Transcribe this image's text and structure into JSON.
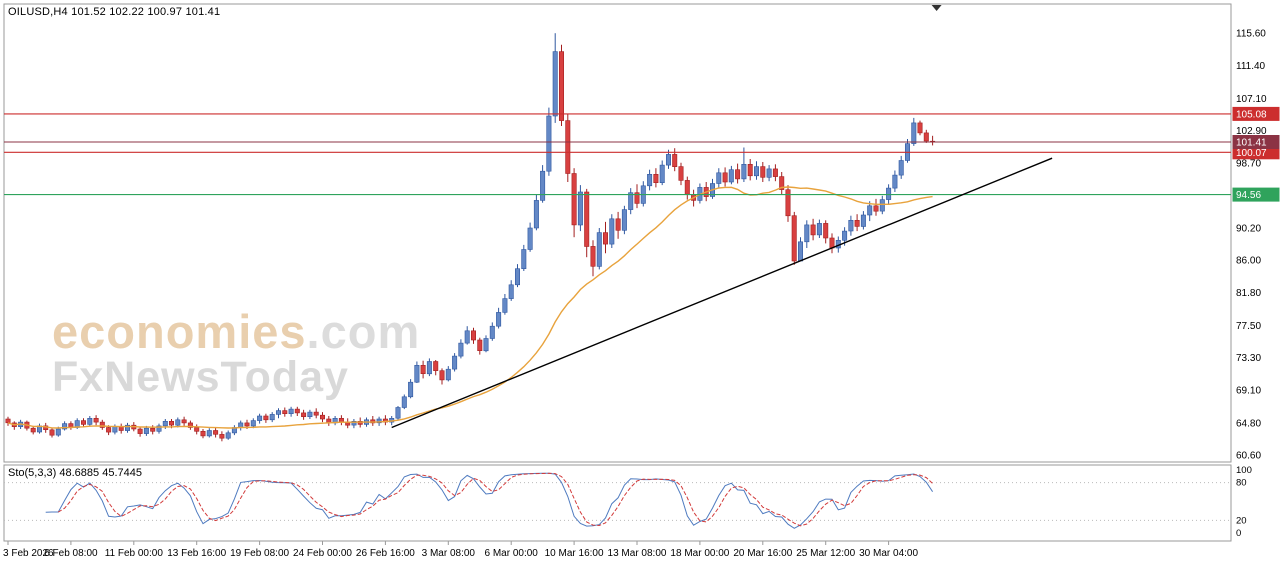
{
  "header": {
    "symbol": "OILUSD,H4",
    "ohlc": "101.52 102.22 100.97 101.41"
  },
  "indicator": {
    "name": "Sto(5,3,3)",
    "k_value": "48.6885",
    "d_value": "45.7445"
  },
  "watermark": {
    "brand": "economies",
    "domain": ".com",
    "line2": "FxNewsToday"
  },
  "colors": {
    "up": "#6388c6",
    "up_border": "#2f57a0",
    "down": "#d84040",
    "down_border": "#a31f1f",
    "border": "#9a9a9a",
    "axis_text": "#000000",
    "background": "#ffffff",
    "watermark_brand": "#e9cfae",
    "watermark_gray": "#d9d9d9"
  },
  "chart_data": {
    "type": "candlestick",
    "symbol": "OILUSD",
    "timeframe": "H4",
    "title": "OILUSD,H4 101.52 102.22 100.97 101.41",
    "ohlc_current": {
      "open": 101.52,
      "high": 102.22,
      "low": 100.97,
      "close": 101.41
    },
    "x_label_step": 10,
    "x_labels": [
      "3 Feb 2026",
      "6 Feb 08:00",
      "11 Feb 00:00",
      "13 Feb 16:00",
      "19 Feb 08:00",
      "24 Feb 00:00",
      "26 Feb 16:00",
      "3 Mar 08:00",
      "6 Mar 00:00",
      "10 Mar 16:00",
      "13 Mar 08:00",
      "18 Mar 00:00",
      "20 Mar 16:00",
      "25 Mar 12:00",
      "30 Mar 04:00"
    ],
    "y_axis": {
      "min": 59.7,
      "max": 119.4,
      "ticks": [
        "115.60",
        "111.40",
        "107.10",
        "102.90",
        "98.70",
        "90.20",
        "86.00",
        "81.80",
        "77.50",
        "73.30",
        "69.10",
        "64.80",
        "60.60"
      ]
    },
    "h_lines": [
      {
        "price": 105.08,
        "label": "105.08",
        "color": "#cc2e2e"
      },
      {
        "price": 100.07,
        "label": "100.07",
        "color": "#cc2e2e"
      },
      {
        "price": 94.56,
        "label": "94.56",
        "color": "#2fa35c"
      },
      {
        "price": 101.41,
        "label": "101.41",
        "color": "#8b3344"
      }
    ],
    "trendline": {
      "from_index": 61,
      "from_price": 64.2,
      "to_index": 166,
      "to_price": 99.3,
      "color": "#000000"
    },
    "ma": {
      "type": "SMA",
      "period": 30,
      "color": "#e8a33d"
    },
    "stochastic": {
      "name": "Sto(5,3,3)",
      "k_period": 5,
      "d_period": 3,
      "slowing": 3,
      "k_value": 48.6885,
      "d_value": 45.7445,
      "axis_labels": [
        "100",
        "80",
        "20",
        "0"
      ],
      "level_lines": [
        80,
        20
      ],
      "k_color": "#4f7bc0",
      "d_color": "#d23b3b",
      "range": [
        0,
        100
      ]
    },
    "candles": [
      [
        65.3,
        65.6,
        64.4,
        64.8
      ],
      [
        64.8,
        65.0,
        63.9,
        64.3
      ],
      [
        64.3,
        65.2,
        64.0,
        64.9
      ],
      [
        64.9,
        65.1,
        63.8,
        64.1
      ],
      [
        64.1,
        64.4,
        63.3,
        63.6
      ],
      [
        63.6,
        64.7,
        63.4,
        64.4
      ],
      [
        64.4,
        64.8,
        63.5,
        63.9
      ],
      [
        63.9,
        64.2,
        62.9,
        63.2
      ],
      [
        63.2,
        64.3,
        63.0,
        64.0
      ],
      [
        64.0,
        65.0,
        63.8,
        64.7
      ],
      [
        64.7,
        65.0,
        63.9,
        64.2
      ],
      [
        64.2,
        65.4,
        64.0,
        65.1
      ],
      [
        65.1,
        65.4,
        64.2,
        64.6
      ],
      [
        64.6,
        65.7,
        64.4,
        65.4
      ],
      [
        65.4,
        65.8,
        64.5,
        64.9
      ],
      [
        64.9,
        65.2,
        63.9,
        64.2
      ],
      [
        64.2,
        64.5,
        63.2,
        63.6
      ],
      [
        63.6,
        64.6,
        63.3,
        64.3
      ],
      [
        64.3,
        64.7,
        63.4,
        63.8
      ],
      [
        63.8,
        64.8,
        63.5,
        64.5
      ],
      [
        64.5,
        64.9,
        63.7,
        64.0
      ],
      [
        64.0,
        64.3,
        63.0,
        63.4
      ],
      [
        63.4,
        64.4,
        63.1,
        64.1
      ],
      [
        64.1,
        64.5,
        63.3,
        63.7
      ],
      [
        63.7,
        64.7,
        63.4,
        64.4
      ],
      [
        64.4,
        65.3,
        64.0,
        65.0
      ],
      [
        65.0,
        65.3,
        64.1,
        64.5
      ],
      [
        64.5,
        65.5,
        64.2,
        65.2
      ],
      [
        65.2,
        65.6,
        64.4,
        64.8
      ],
      [
        64.8,
        65.1,
        63.9,
        64.2
      ],
      [
        64.2,
        64.6,
        63.3,
        63.7
      ],
      [
        63.7,
        64.0,
        62.8,
        63.1
      ],
      [
        63.1,
        64.1,
        62.9,
        63.8
      ],
      [
        63.8,
        64.2,
        62.9,
        63.3
      ],
      [
        63.3,
        63.7,
        62.4,
        62.8
      ],
      [
        62.8,
        63.8,
        62.6,
        63.5
      ],
      [
        63.5,
        64.5,
        63.2,
        64.2
      ],
      [
        64.2,
        65.1,
        63.8,
        64.8
      ],
      [
        64.8,
        65.2,
        64.0,
        64.4
      ],
      [
        64.4,
        65.4,
        64.1,
        65.1
      ],
      [
        65.1,
        66.0,
        64.7,
        65.7
      ],
      [
        65.7,
        66.0,
        64.8,
        65.2
      ],
      [
        65.2,
        66.2,
        64.9,
        65.9
      ],
      [
        65.9,
        66.7,
        65.4,
        66.4
      ],
      [
        66.4,
        66.8,
        65.6,
        66.0
      ],
      [
        66.0,
        66.9,
        65.6,
        66.6
      ],
      [
        66.6,
        66.9,
        65.7,
        66.1
      ],
      [
        66.1,
        66.5,
        65.2,
        65.6
      ],
      [
        65.6,
        66.5,
        65.3,
        66.2
      ],
      [
        66.2,
        66.7,
        65.4,
        65.8
      ],
      [
        65.8,
        66.2,
        64.9,
        65.3
      ],
      [
        65.3,
        65.7,
        64.4,
        64.8
      ],
      [
        64.8,
        65.7,
        64.5,
        65.4
      ],
      [
        65.4,
        65.8,
        64.5,
        64.9
      ],
      [
        64.9,
        65.4,
        64.1,
        64.5
      ],
      [
        64.5,
        65.3,
        64.1,
        65.0
      ],
      [
        65.0,
        65.5,
        64.2,
        64.6
      ],
      [
        64.6,
        65.5,
        64.3,
        65.2
      ],
      [
        65.2,
        65.7,
        64.4,
        64.8
      ],
      [
        64.8,
        65.6,
        64.4,
        65.3
      ],
      [
        65.3,
        65.8,
        64.5,
        64.9
      ],
      [
        64.9,
        65.7,
        64.5,
        65.4
      ],
      [
        65.4,
        67.0,
        65.2,
        66.8
      ],
      [
        66.8,
        68.5,
        66.6,
        68.2
      ],
      [
        68.2,
        70.5,
        68.0,
        70.1
      ],
      [
        70.1,
        72.8,
        70.0,
        72.3
      ],
      [
        72.3,
        72.9,
        70.6,
        71.2
      ],
      [
        71.2,
        73.2,
        70.9,
        72.8
      ],
      [
        72.8,
        73.0,
        71.0,
        71.6
      ],
      [
        71.6,
        71.9,
        69.8,
        70.4
      ],
      [
        70.4,
        72.2,
        70.2,
        71.8
      ],
      [
        71.8,
        73.9,
        71.5,
        73.5
      ],
      [
        73.5,
        75.7,
        73.2,
        75.2
      ],
      [
        75.2,
        77.4,
        75.0,
        76.8
      ],
      [
        76.8,
        77.2,
        75.1,
        75.6
      ],
      [
        75.6,
        75.9,
        73.7,
        74.2
      ],
      [
        74.2,
        76.2,
        74.0,
        75.8
      ],
      [
        75.8,
        77.9,
        75.5,
        77.4
      ],
      [
        77.4,
        79.8,
        77.1,
        79.2
      ],
      [
        79.2,
        81.6,
        78.9,
        81.0
      ],
      [
        81.0,
        83.4,
        80.7,
        82.8
      ],
      [
        82.8,
        85.5,
        82.5,
        84.9
      ],
      [
        84.9,
        88.0,
        84.6,
        87.4
      ],
      [
        87.4,
        90.9,
        87.1,
        90.2
      ],
      [
        90.2,
        94.5,
        89.9,
        93.8
      ],
      [
        93.8,
        98.4,
        93.5,
        97.6
      ],
      [
        97.6,
        105.9,
        97.0,
        104.8
      ],
      [
        104.8,
        115.6,
        103.9,
        113.2
      ],
      [
        113.2,
        114.1,
        103.5,
        104.2
      ],
      [
        104.2,
        105.0,
        96.2,
        97.3
      ],
      [
        97.3,
        98.0,
        89.0,
        90.6
      ],
      [
        90.6,
        95.8,
        89.8,
        94.9
      ],
      [
        94.9,
        95.3,
        86.4,
        87.8
      ],
      [
        87.8,
        88.6,
        83.9,
        85.2
      ],
      [
        85.2,
        90.2,
        84.8,
        89.6
      ],
      [
        89.6,
        91.0,
        86.9,
        88.1
      ],
      [
        88.1,
        92.0,
        87.6,
        91.4
      ],
      [
        91.4,
        92.3,
        88.8,
        89.9
      ],
      [
        89.9,
        93.1,
        89.4,
        92.6
      ],
      [
        92.6,
        95.4,
        92.0,
        94.8
      ],
      [
        94.8,
        95.9,
        92.8,
        93.4
      ],
      [
        93.4,
        96.3,
        93.0,
        95.7
      ],
      [
        95.7,
        97.8,
        95.1,
        97.2
      ],
      [
        97.2,
        98.0,
        95.5,
        96.1
      ],
      [
        96.1,
        99.0,
        95.8,
        98.4
      ],
      [
        98.4,
        100.4,
        97.9,
        99.8
      ],
      [
        99.8,
        100.6,
        97.6,
        98.2
      ],
      [
        98.2,
        98.7,
        95.8,
        96.4
      ],
      [
        96.4,
        96.9,
        93.9,
        94.6
      ],
      [
        94.6,
        95.2,
        93.0,
        93.8
      ],
      [
        93.8,
        96.0,
        93.4,
        95.5
      ],
      [
        95.5,
        96.2,
        93.7,
        94.3
      ],
      [
        94.3,
        96.6,
        94.0,
        96.0
      ],
      [
        96.0,
        98.0,
        95.4,
        97.4
      ],
      [
        97.4,
        98.1,
        95.6,
        96.2
      ],
      [
        96.2,
        98.3,
        95.9,
        97.8
      ],
      [
        97.8,
        98.6,
        96.0,
        96.6
      ],
      [
        96.6,
        100.7,
        96.2,
        98.5
      ],
      [
        98.5,
        99.2,
        96.4,
        97.0
      ],
      [
        97.0,
        98.9,
        96.5,
        98.2
      ],
      [
        98.2,
        98.8,
        96.2,
        96.8
      ],
      [
        96.8,
        98.4,
        96.3,
        97.9
      ],
      [
        97.9,
        98.5,
        96.3,
        96.9
      ],
      [
        96.9,
        97.5,
        94.6,
        95.2
      ],
      [
        95.2,
        95.8,
        91.0,
        91.8
      ],
      [
        91.8,
        92.3,
        85.4,
        85.9
      ],
      [
        85.9,
        89.0,
        86.0,
        88.4
      ],
      [
        88.4,
        91.2,
        87.6,
        90.6
      ],
      [
        90.6,
        91.4,
        88.6,
        89.3
      ],
      [
        89.3,
        91.3,
        88.9,
        90.8
      ],
      [
        90.8,
        91.2,
        88.2,
        88.9
      ],
      [
        88.9,
        89.5,
        86.9,
        87.6
      ],
      [
        87.6,
        89.1,
        87.0,
        88.6
      ],
      [
        88.6,
        90.3,
        87.9,
        89.8
      ],
      [
        89.8,
        91.8,
        89.2,
        91.2
      ],
      [
        91.2,
        92.0,
        89.8,
        90.4
      ],
      [
        90.4,
        92.4,
        90.0,
        91.9
      ],
      [
        91.9,
        93.7,
        91.1,
        93.1
      ],
      [
        93.1,
        94.0,
        91.8,
        92.4
      ],
      [
        92.4,
        94.4,
        92.0,
        93.9
      ],
      [
        93.9,
        95.9,
        93.2,
        95.4
      ],
      [
        95.4,
        97.7,
        94.9,
        97.1
      ],
      [
        97.1,
        99.6,
        96.6,
        99.0
      ],
      [
        99.0,
        101.8,
        98.7,
        101.2
      ],
      [
        101.2,
        104.55,
        100.9,
        103.9
      ],
      [
        103.9,
        104.2,
        102.3,
        102.6
      ],
      [
        102.6,
        103.0,
        101.3,
        101.55
      ],
      [
        101.52,
        102.22,
        100.97,
        101.41
      ]
    ]
  }
}
